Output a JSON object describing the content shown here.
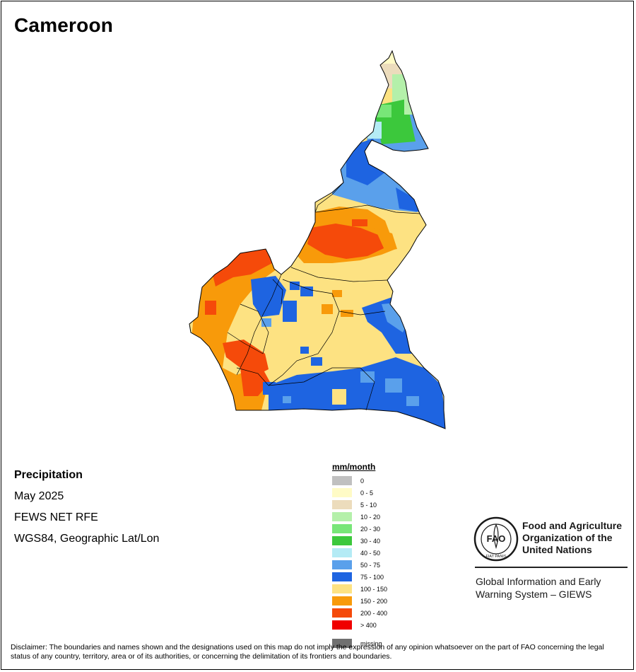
{
  "title": "Cameroon",
  "info": {
    "variable": "Precipitation",
    "period": "May 2025",
    "source": "FEWS NET RFE",
    "projection": "WGS84, Geographic Lat/Lon"
  },
  "legend": {
    "unit": "mm/month",
    "classes": [
      {
        "label": "0",
        "color": "#c0c0c0"
      },
      {
        "label": "0 - 5",
        "color": "#fffbc6"
      },
      {
        "label": "5 - 10",
        "color": "#ecdcbc"
      },
      {
        "label": "10 - 20",
        "color": "#b4f0aa"
      },
      {
        "label": "20 - 30",
        "color": "#78e678"
      },
      {
        "label": "30 - 40",
        "color": "#3cc83c"
      },
      {
        "label": "40 - 50",
        "color": "#b4ebf5"
      },
      {
        "label": "50 - 75",
        "color": "#5aa0eb"
      },
      {
        "label": "75 - 100",
        "color": "#1e64e1"
      },
      {
        "label": "100 - 150",
        "color": "#fde282"
      },
      {
        "label": "150 - 200",
        "color": "#f89a0a"
      },
      {
        "label": "200 - 400",
        "color": "#f54a0a"
      },
      {
        "label": "> 400",
        "color": "#f00000"
      }
    ],
    "missing": {
      "label": "missing",
      "color": "#707070"
    }
  },
  "logo": {
    "org_lines": [
      "Food and Agriculture",
      "Organization of the",
      "United Nations"
    ],
    "emblem_text": "FAO",
    "motto": "FIAT PANIS",
    "system_lines": [
      "Global Information and Early",
      "Warning System – GIEWS"
    ]
  },
  "disclaimer": "Disclaimer: The boundaries and names shown and the designations used on this map do not imply the expression of any opinion whatsoever on the part of FAO concerning the legal status of any country, territory, area or of its authorities, or concerning the delimitation of its frontiers and boundaries.",
  "colors": {
    "border": "#000000",
    "map_bg": "#ffffff"
  }
}
